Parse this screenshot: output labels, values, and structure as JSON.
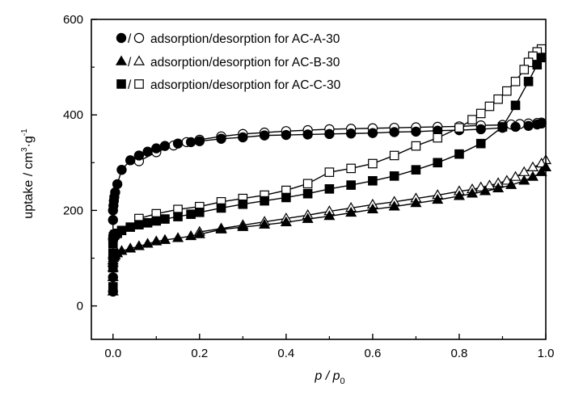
{
  "chart_data": {
    "type": "scatter",
    "xlabel": "p / p0",
    "xlabel_parts": {
      "main": "p / p",
      "sub": "0"
    },
    "ylabel": "uptake / cm3·g-1",
    "ylabel_parts": {
      "prefix": "uptake / cm",
      "sup1": "3",
      "mid": "·g",
      "sup2": "-1"
    },
    "xlim": [
      -0.05,
      1.0
    ],
    "ylim": [
      -70,
      600
    ],
    "xticks": [
      "0.0",
      "0.2",
      "0.4",
      "0.6",
      "0.8",
      "1.0"
    ],
    "yticks": [
      "0",
      "200",
      "400",
      "600"
    ],
    "grid": false,
    "legend_position": "top-left",
    "series": [
      {
        "name": "adsorption/desorption for AC-A-30",
        "marker": "circle",
        "adsorption": {
          "x": [
            0.0,
            0.0,
            0.0,
            0.0,
            0.0,
            0.0,
            0.001,
            0.002,
            0.003,
            0.005,
            0.01,
            0.02,
            0.04,
            0.06,
            0.08,
            0.1,
            0.12,
            0.15,
            0.18,
            0.2,
            0.25,
            0.3,
            0.35,
            0.4,
            0.45,
            0.5,
            0.55,
            0.6,
            0.65,
            0.7,
            0.75,
            0.8,
            0.85,
            0.9,
            0.93,
            0.96,
            0.98,
            0.99
          ],
          "y": [
            30,
            60,
            100,
            140,
            180,
            200,
            210,
            220,
            228,
            238,
            255,
            285,
            305,
            315,
            323,
            330,
            335,
            340,
            343,
            345,
            350,
            353,
            357,
            358,
            359,
            360,
            361,
            362,
            364,
            365,
            367,
            368,
            370,
            373,
            375,
            377,
            380,
            382
          ]
        },
        "desorption": {
          "x": [
            0.99,
            0.98,
            0.96,
            0.94,
            0.92,
            0.9,
            0.85,
            0.8,
            0.75,
            0.7,
            0.65,
            0.6,
            0.55,
            0.5,
            0.45,
            0.4,
            0.35,
            0.3,
            0.25,
            0.2,
            0.17,
            0.14,
            0.1,
            0.06
          ],
          "y": [
            384,
            383,
            382,
            381,
            380,
            379,
            378,
            376,
            375,
            374,
            373,
            372,
            371,
            370,
            368,
            366,
            363,
            360,
            355,
            348,
            343,
            336,
            322,
            303
          ]
        }
      },
      {
        "name": "adsorption/desorption for AC-B-30",
        "marker": "triangle",
        "adsorption": {
          "x": [
            0.0,
            0.0,
            0.0,
            0.0,
            0.0,
            0.001,
            0.003,
            0.005,
            0.01,
            0.02,
            0.04,
            0.06,
            0.08,
            0.1,
            0.12,
            0.15,
            0.18,
            0.2,
            0.25,
            0.3,
            0.35,
            0.4,
            0.45,
            0.5,
            0.55,
            0.6,
            0.65,
            0.7,
            0.75,
            0.8,
            0.83,
            0.86,
            0.89,
            0.92,
            0.95,
            0.97,
            0.99,
            1.0
          ],
          "y": [
            30,
            60,
            80,
            90,
            95,
            100,
            103,
            106,
            110,
            115,
            120,
            125,
            130,
            135,
            138,
            142,
            146,
            150,
            160,
            165,
            170,
            175,
            182,
            188,
            195,
            202,
            208,
            215,
            222,
            230,
            235,
            240,
            246,
            253,
            262,
            270,
            280,
            290
          ]
        },
        "desorption": {
          "x": [
            1.0,
            0.99,
            0.97,
            0.95,
            0.93,
            0.91,
            0.89,
            0.87,
            0.85,
            0.83,
            0.8,
            0.75,
            0.7,
            0.65,
            0.6,
            0.55,
            0.5,
            0.45,
            0.4,
            0.35,
            0.3,
            0.25,
            0.2
          ],
          "y": [
            305,
            298,
            290,
            280,
            270,
            262,
            257,
            252,
            248,
            244,
            240,
            232,
            225,
            218,
            212,
            205,
            198,
            190,
            183,
            176,
            169,
            162,
            155
          ]
        }
      },
      {
        "name": "adsorption/desorption for AC-C-30",
        "marker": "square",
        "adsorption": {
          "x": [
            0.0,
            0.0,
            0.0,
            0.0,
            0.0,
            0.001,
            0.003,
            0.005,
            0.01,
            0.02,
            0.04,
            0.06,
            0.08,
            0.1,
            0.12,
            0.15,
            0.18,
            0.2,
            0.25,
            0.3,
            0.35,
            0.4,
            0.45,
            0.5,
            0.55,
            0.6,
            0.65,
            0.7,
            0.75,
            0.8,
            0.85,
            0.9,
            0.93,
            0.96,
            0.98,
            0.99
          ],
          "y": [
            40,
            80,
            110,
            130,
            140,
            145,
            148,
            150,
            152,
            158,
            165,
            170,
            174,
            178,
            182,
            187,
            192,
            196,
            205,
            213,
            220,
            227,
            235,
            245,
            253,
            262,
            272,
            285,
            300,
            318,
            340,
            375,
            420,
            470,
            505,
            520
          ]
        },
        "desorption": {
          "x": [
            0.99,
            0.98,
            0.97,
            0.96,
            0.95,
            0.93,
            0.91,
            0.89,
            0.87,
            0.85,
            0.83,
            0.8,
            0.75,
            0.7,
            0.65,
            0.6,
            0.55,
            0.5,
            0.45,
            0.4,
            0.35,
            0.3,
            0.25,
            0.2,
            0.15,
            0.1,
            0.06
          ],
          "y": [
            538,
            532,
            523,
            510,
            495,
            470,
            450,
            433,
            418,
            403,
            390,
            373,
            352,
            335,
            315,
            298,
            288,
            280,
            256,
            242,
            232,
            225,
            218,
            208,
            202,
            193,
            183
          ]
        }
      }
    ]
  }
}
